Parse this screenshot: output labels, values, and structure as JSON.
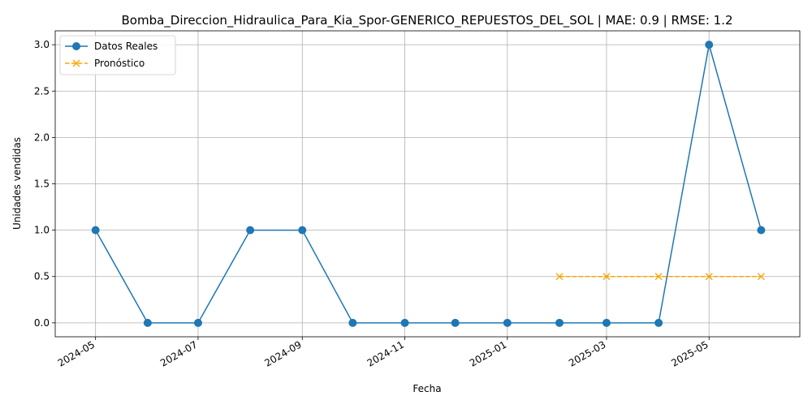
{
  "chart_data": {
    "type": "line",
    "title": "Bomba_Direccion_Hidraulica_Para_Kia_Spor-GENERICO_REPUESTOS_DEL_SOL | MAE: 0.9 | RMSE: 1.2",
    "xlabel": "Fecha",
    "ylabel": "Unidades vendidas",
    "x_ticks": [
      "2024-05",
      "2024-07",
      "2024-09",
      "2024-11",
      "2025-01",
      "2025-03",
      "2025-05"
    ],
    "x_tick_dates": [
      "2024-05-01",
      "2024-07-01",
      "2024-09-01",
      "2024-11-01",
      "2025-01-01",
      "2025-03-01",
      "2025-05-01"
    ],
    "xlim": [
      "2024-04-07",
      "2025-06-24"
    ],
    "y_ticks": [
      "0.0",
      "0.5",
      "1.0",
      "1.5",
      "2.0",
      "2.5",
      "3.0"
    ],
    "ylim": [
      -0.15,
      3.15
    ],
    "grid": true,
    "legend_position": "upper-left",
    "series": [
      {
        "name": "Datos Reales",
        "color": "#1f77b4",
        "line_style": "solid",
        "marker": "circle",
        "x": [
          "2024-05-01",
          "2024-06-01",
          "2024-07-01",
          "2024-08-01",
          "2024-09-01",
          "2024-10-01",
          "2024-11-01",
          "2024-12-01",
          "2025-01-01",
          "2025-02-01",
          "2025-03-01",
          "2025-04-01",
          "2025-05-01",
          "2025-06-01"
        ],
        "values": [
          1,
          0,
          0,
          1,
          1,
          0,
          0,
          0,
          0,
          0,
          0,
          0,
          3,
          1
        ]
      },
      {
        "name": "Pronóstico",
        "color": "#ffa500",
        "line_style": "dashed",
        "marker": "x",
        "x": [
          "2025-02-01",
          "2025-03-01",
          "2025-04-01",
          "2025-05-01",
          "2025-06-01"
        ],
        "values": [
          0.5,
          0.5,
          0.5,
          0.5,
          0.5
        ]
      }
    ]
  }
}
